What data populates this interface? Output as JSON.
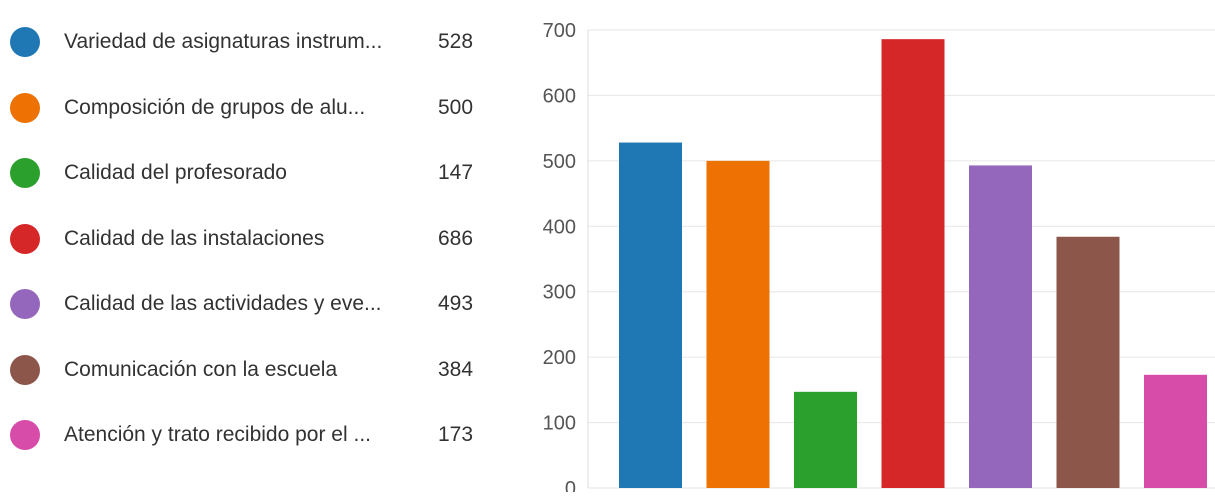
{
  "chart_data": {
    "type": "bar",
    "categories": [
      "Variedad de asignaturas instrum...",
      "Composición de grupos de alu...",
      "Calidad del profesorado",
      "Calidad de las instalaciones",
      "Calidad de las actividades y eve...",
      "Comunicación con la escuela",
      "Atención y trato recibido por el ..."
    ],
    "values": [
      528,
      500,
      147,
      686,
      493,
      384,
      173
    ],
    "colors": [
      "#1f77b4",
      "#ee7203",
      "#2ca02c",
      "#d62728",
      "#9467bd",
      "#8c564b",
      "#d64ca8"
    ],
    "ylim": [
      0,
      700
    ],
    "yticks": [
      0,
      100,
      200,
      300,
      400,
      500,
      600,
      700
    ],
    "grid": true,
    "legend_position": "left"
  }
}
